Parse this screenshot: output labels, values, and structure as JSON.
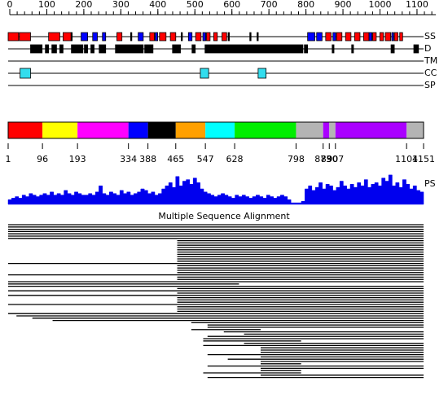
{
  "ruler": {
    "ticks": [
      0,
      100,
      200,
      300,
      400,
      500,
      600,
      700,
      800,
      900,
      1000,
      1100
    ],
    "minor_step": 20
  },
  "tracks": [
    {
      "label": "SS",
      "features": [
        {
          "color": "#ff0000",
          "segments": [
            [
              1,
              30
            ],
            [
              32,
              63
            ],
            [
              113,
              144
            ],
            [
              153,
              176
            ],
            [
              302,
              316
            ],
            [
              393,
              406
            ],
            [
              420,
              438
            ],
            [
              450,
              465
            ],
            [
              520,
              535
            ],
            [
              550,
              560
            ],
            [
              570,
              580
            ],
            [
              593,
              606
            ],
            [
              880,
              895
            ],
            [
              910,
              925
            ],
            [
              935,
              950
            ],
            [
              960,
              975
            ],
            [
              985,
              1000
            ],
            [
              1010,
              1020
            ],
            [
              1030,
              1040
            ],
            [
              1045,
              1060
            ],
            [
              1070,
              1080
            ],
            [
              1085,
              1093
            ]
          ]
        },
        {
          "color": "#0000ff",
          "segments": [
            [
              203,
              221
            ],
            [
              235,
              248
            ],
            [
              262,
              271
            ],
            [
              361,
              375
            ],
            [
              408,
              415
            ],
            [
              500,
              510
            ],
            [
              540,
              548
            ],
            [
              830,
              850
            ],
            [
              855,
              870
            ],
            [
              900,
              908
            ],
            [
              1000,
              1008
            ],
            [
              1063,
              1068
            ]
          ]
        },
        {
          "color": "#000000",
          "segments": [
            [
              175,
              178
            ],
            [
              340,
              342
            ],
            [
              480,
              482
            ],
            [
              610,
              612
            ],
            [
              670,
              672
            ],
            [
              690,
              692
            ]
          ]
        }
      ]
    },
    {
      "label": "D",
      "features": [
        {
          "color": "#000000",
          "segments": [
            [
              63,
              95
            ],
            [
              104,
              113
            ],
            [
              122,
              135
            ],
            [
              144,
              153
            ],
            [
              176,
              208
            ],
            [
              212,
              221
            ],
            [
              230,
              239
            ],
            [
              253,
              271
            ],
            [
              298,
              375
            ],
            [
              379,
              402
            ],
            [
              456,
              478
            ],
            [
              510,
              519
            ],
            [
              546,
              817
            ],
            [
              821,
              830
            ],
            [
              898,
              903
            ],
            [
              952,
              957
            ],
            [
              1061,
              1070
            ],
            [
              1124,
              1137
            ]
          ]
        }
      ]
    },
    {
      "label": "TM",
      "features": []
    },
    {
      "label": "CC",
      "features": [
        {
          "color": "#33ddee",
          "segments": [
            [
              34,
              63
            ],
            [
              533,
              556
            ],
            [
              693,
              715
            ]
          ]
        }
      ]
    },
    {
      "label": "SP",
      "features": []
    }
  ],
  "domains": {
    "boundaries": [
      1,
      96,
      193,
      334,
      388,
      465,
      547,
      628,
      798,
      873,
      890,
      907,
      1104,
      1151
    ],
    "colors": [
      "#ff0000",
      "#ffff00",
      "#ff00ff",
      "#0000ff",
      "#000000",
      "#ffa000",
      "#00ffff",
      "#00ee00",
      "#b4b4b4",
      "#aa00ff",
      "#b4b4b4",
      "#aa00ff",
      "#b4b4b4"
    ]
  },
  "profile": {
    "label": "PS",
    "color": "#0000ee",
    "values": [
      0.15,
      0.2,
      0.25,
      0.2,
      0.3,
      0.25,
      0.35,
      0.3,
      0.25,
      0.3,
      0.35,
      0.3,
      0.4,
      0.3,
      0.35,
      0.3,
      0.45,
      0.35,
      0.3,
      0.4,
      0.35,
      0.3,
      0.3,
      0.35,
      0.3,
      0.4,
      0.6,
      0.35,
      0.3,
      0.4,
      0.35,
      0.3,
      0.45,
      0.35,
      0.4,
      0.3,
      0.35,
      0.4,
      0.5,
      0.45,
      0.35,
      0.4,
      0.3,
      0.35,
      0.5,
      0.6,
      0.7,
      0.55,
      0.9,
      0.6,
      0.75,
      0.8,
      0.65,
      0.85,
      0.7,
      0.5,
      0.4,
      0.35,
      0.3,
      0.25,
      0.3,
      0.35,
      0.3,
      0.25,
      0.2,
      0.3,
      0.25,
      0.3,
      0.25,
      0.2,
      0.25,
      0.3,
      0.25,
      0.2,
      0.3,
      0.25,
      0.2,
      0.25,
      0.3,
      0.25,
      0.15,
      0.05,
      0.05,
      0.05,
      0.1,
      0.5,
      0.6,
      0.45,
      0.55,
      0.7,
      0.5,
      0.65,
      0.6,
      0.45,
      0.55,
      0.75,
      0.6,
      0.5,
      0.65,
      0.55,
      0.7,
      0.6,
      0.8,
      0.55,
      0.65,
      0.7,
      0.6,
      0.85,
      0.75,
      0.95,
      0.6,
      0.7,
      0.55,
      0.8,
      0.65,
      0.5,
      0.6,
      0.45,
      0.4
    ]
  },
  "msa": {
    "title": "Multiple Sequence Alignment",
    "rows": [
      [
        1,
        1151
      ],
      [
        1,
        1151
      ],
      [
        1,
        1151
      ],
      [
        1,
        1151
      ],
      [
        1,
        1151
      ],
      [
        1,
        1151
      ],
      [
        1,
        1151
      ],
      [
        469,
        1151
      ],
      [
        469,
        1151
      ],
      [
        469,
        1151
      ],
      [
        469,
        1151
      ],
      [
        469,
        1151
      ],
      [
        469,
        1151
      ],
      [
        469,
        1151
      ],
      [
        469,
        1151
      ],
      [
        469,
        1151
      ],
      [
        469,
        1151
      ],
      [
        1,
        1151
      ],
      [
        469,
        1151
      ],
      [
        469,
        1151
      ],
      [
        469,
        1151
      ],
      [
        469,
        1151
      ],
      [
        1,
        1151
      ],
      [
        469,
        1151
      ],
      [
        469,
        1151
      ],
      [
        1,
        1151
      ],
      [
        1,
        640
      ],
      [
        1,
        1151
      ],
      [
        469,
        1151
      ],
      [
        1,
        1151
      ],
      [
        469,
        1151
      ],
      [
        1,
        1151
      ],
      [
        469,
        1151
      ],
      [
        469,
        1151
      ],
      [
        469,
        1151
      ],
      [
        1,
        1151
      ],
      [
        469,
        1151
      ],
      [
        469,
        1151
      ],
      [
        469,
        1151
      ],
      [
        1,
        1151
      ],
      [
        24,
        1151
      ],
      [
        68,
        1151
      ],
      [
        124,
        1151
      ],
      [
        508,
        1151
      ],
      [
        553,
        1151
      ],
      [
        553,
        1151
      ],
      [
        508,
        700
      ],
      [
        598,
        1151
      ],
      [
        654,
        1151
      ],
      [
        553,
        1151
      ],
      [
        541,
        1151
      ],
      [
        541,
        812
      ],
      [
        654,
        1151
      ],
      [
        541,
        1151
      ],
      [
        700,
        1151
      ],
      [
        700,
        1151
      ],
      [
        700,
        1151
      ],
      [
        553,
        1151
      ],
      [
        700,
        1151
      ],
      [
        609,
        1151
      ],
      [
        700,
        1151
      ],
      [
        700,
        812
      ],
      [
        553,
        1151
      ],
      [
        700,
        1151
      ],
      [
        700,
        812
      ],
      [
        541,
        812
      ],
      [
        700,
        1151
      ],
      [
        553,
        1151
      ]
    ]
  }
}
